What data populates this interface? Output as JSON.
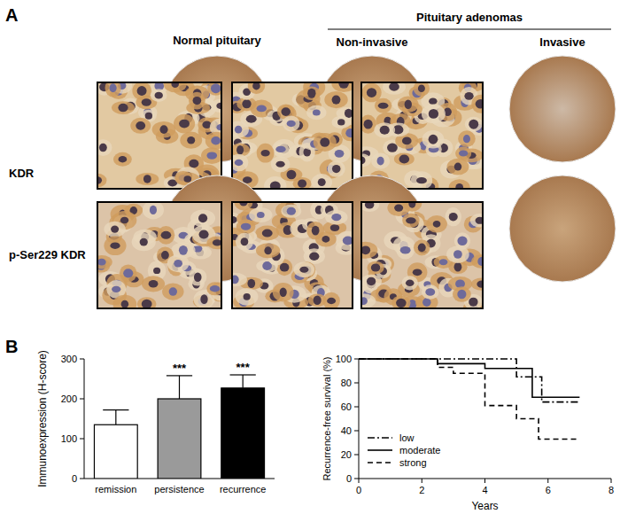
{
  "figure": {
    "panel_labels": [
      "A",
      "B"
    ],
    "panel_a": {
      "group_label": "Pituitary adenomas",
      "columns": [
        "Normal pituitary",
        "Non-invasive",
        "Invasive"
      ],
      "rows": [
        "KDR",
        "p-Ser229 KDR"
      ]
    }
  },
  "chart_data": [
    {
      "type": "bar",
      "categories": [
        "remission",
        "persistence",
        "recurrence"
      ],
      "values": [
        135,
        200,
        227
      ],
      "errors": [
        37,
        58,
        33
      ],
      "colors": [
        "#ffffff",
        "#9a9a9a",
        "#000000"
      ],
      "y_label": "Immunoexpression (H-score)",
      "ylim": [
        0,
        300
      ],
      "yticks": [
        0,
        100,
        200,
        300
      ],
      "annotations": [
        {
          "text": "***",
          "category": "persistence"
        },
        {
          "text": "***",
          "category": "recurrence"
        }
      ]
    },
    {
      "type": "step",
      "x_label": "Years",
      "y_label": "Recurrence-free survival (%)",
      "xlim": [
        0,
        8
      ],
      "xticks": [
        0,
        2,
        4,
        6,
        8
      ],
      "ylim": [
        0,
        100
      ],
      "yticks": [
        0,
        20,
        40,
        60,
        80,
        100
      ],
      "legend": "lower left",
      "series": [
        {
          "name": "low",
          "color": "#000000",
          "line_style": "dashdot",
          "x": [
            0,
            5,
            5.8,
            7
          ],
          "values": [
            100,
            85,
            64,
            64
          ]
        },
        {
          "name": "moderate",
          "color": "#000000",
          "line_style": "solid",
          "x": [
            0,
            2.5,
            4,
            5.5,
            7
          ],
          "values": [
            100,
            96,
            92,
            68,
            68
          ]
        },
        {
          "name": "strong",
          "color": "#000000",
          "line_style": "dashed",
          "x": [
            0,
            2.5,
            3,
            4,
            5,
            5.7,
            7
          ],
          "values": [
            100,
            93,
            88,
            61,
            50,
            33,
            33
          ]
        }
      ]
    }
  ]
}
